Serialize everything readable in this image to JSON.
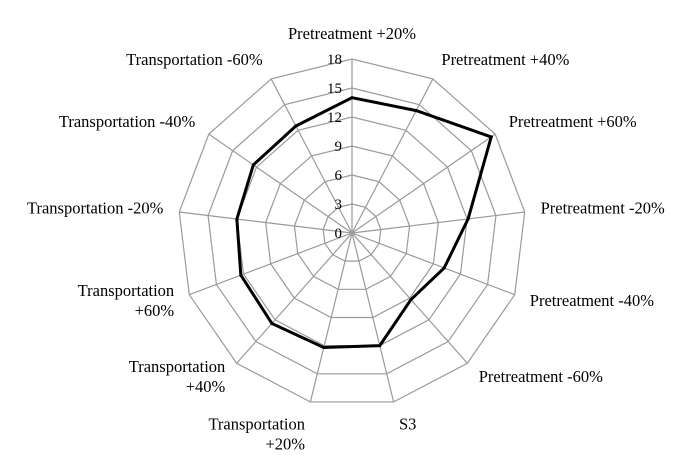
{
  "chart_data": {
    "type": "radar",
    "categories": [
      "Pretreatment +20%",
      "Pretreatment +40%",
      "Pretreatment +60%",
      "Pretreatment -20%",
      "Pretreatment -40%",
      "Pretreatment -60%",
      "S3",
      "Transportation +20%",
      "Transportation +40%",
      "Transportation +60%",
      "Transportation -20%",
      "Transportation -40%",
      "Transportation -60%"
    ],
    "series": [
      {
        "values": [
          14,
          14.3,
          17.5,
          12.1,
          10.2,
          9.2,
          12,
          12.2,
          12.5,
          12.3,
          12,
          12.4,
          12.5
        ],
        "color": "#000000"
      }
    ],
    "radial_ticks": [
      "0",
      "3",
      "6",
      "9",
      "12",
      "15",
      "18"
    ],
    "range": [
      0,
      18
    ],
    "grid": true,
    "legend": "none"
  }
}
